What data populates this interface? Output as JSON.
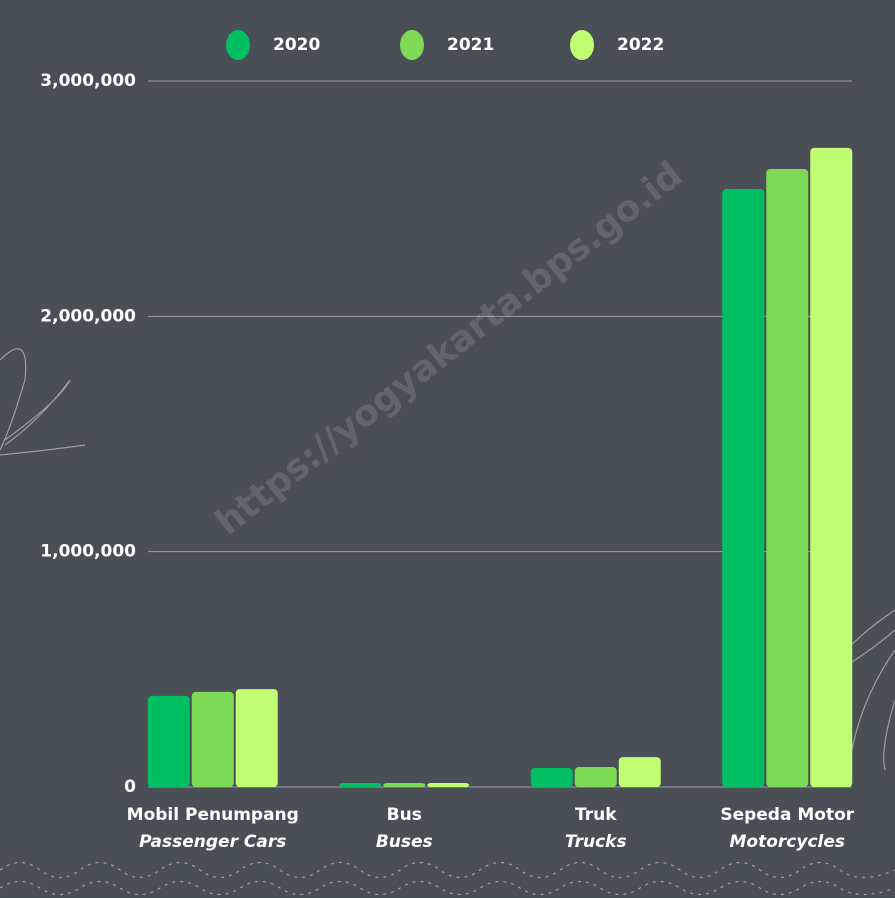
{
  "chart_data": {
    "type": "bar",
    "categories": [
      "Mobil Penumpang",
      "Bus",
      "Truk",
      "Sepeda Motor"
    ],
    "categories_en": [
      "Passenger Cars",
      "Buses",
      "Trucks",
      "Motorcycles"
    ],
    "series": [
      {
        "name": "2020",
        "color": "#00bf63",
        "values": [
          387000,
          17000,
          81000,
          2541000
        ]
      },
      {
        "name": "2021",
        "color": "#7ed957",
        "values": [
          404000,
          17000,
          85000,
          2626000
        ]
      },
      {
        "name": "2022",
        "color": "#c1ff72",
        "values": [
          416000,
          17000,
          127000,
          2716000
        ]
      }
    ],
    "ylim": [
      0,
      3000000
    ],
    "yticks": [
      0,
      {
        "value": 1000000,
        "label": "1,000,000"
      },
      {
        "value": 2000000,
        "label": "2,000,000"
      },
      {
        "value": 3000000,
        "label": "3,000,000"
      }
    ],
    "grid": true,
    "watermark": "https://yogyakarta.bps.go.id"
  }
}
